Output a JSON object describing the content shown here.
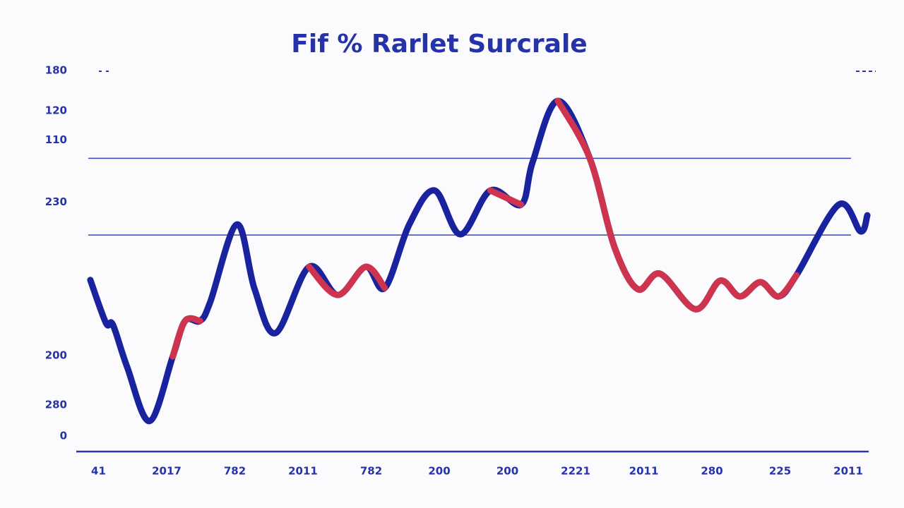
{
  "chart_data": {
    "type": "line",
    "title": "Fif % Rarlet Surcrale",
    "xlim": [
      -0.15,
      11.3
    ],
    "xticks": [
      {
        "value": 0,
        "label": "41"
      },
      {
        "value": 1,
        "label": "2017"
      },
      {
        "value": 2,
        "label": "782"
      },
      {
        "value": 3,
        "label": "2011"
      },
      {
        "value": 4,
        "label": "782"
      },
      {
        "value": 5,
        "label": "200"
      },
      {
        "value": 6,
        "label": "200"
      },
      {
        "value": 7,
        "label": "2221"
      },
      {
        "value": 8,
        "label": "2011"
      },
      {
        "value": 9,
        "label": "280"
      },
      {
        "value": 10,
        "label": "225"
      },
      {
        "value": 11,
        "label": "2011"
      }
    ],
    "ylim": [
      0,
      100
    ],
    "yticks": [
      {
        "value": 100,
        "label": "180"
      },
      {
        "value": 89,
        "label": "120"
      },
      {
        "value": 81,
        "label": "110"
      },
      {
        "value": 64,
        "label": "230"
      },
      {
        "value": 22,
        "label": "200"
      },
      {
        "value": 8.5,
        "label": "280"
      },
      0
    ],
    "hlines": [
      76,
      55
    ],
    "x": [
      -0.12,
      0.11,
      0.21,
      0.42,
      0.75,
      1.09,
      1.27,
      1.49,
      1.64,
      2.03,
      2.29,
      2.6,
      3.09,
      3.51,
      3.92,
      4.2,
      4.56,
      4.93,
      5.31,
      5.75,
      6.2,
      6.37,
      6.74,
      7.21,
      7.57,
      7.91,
      8.24,
      8.76,
      9.12,
      9.41,
      9.71,
      9.98,
      10.24,
      10.86,
      11.18,
      11.28
    ],
    "series": [
      {
        "color": "#1a239e",
        "values": [
          42.7,
          30.9,
          30.5,
          18.9,
          4.1,
          21.8,
          31.5,
          31.5,
          36.7,
          57.9,
          40.2,
          28.2,
          46.3,
          38.6,
          46.3,
          40.5,
          57.9,
          67.2,
          55.2,
          67.2,
          63.3,
          75,
          91.7,
          75.9,
          51.7,
          40.2,
          44.4,
          34.7,
          42.5,
          38.2,
          42.1,
          38.2,
          44.0,
          63.3,
          56.0,
          60.4
        ]
      },
      {
        "color": "#cf344e",
        "values": [
          null,
          null,
          null,
          null,
          null,
          21.8,
          31.5,
          31.5,
          null,
          null,
          null,
          null,
          46.3,
          38.6,
          46.3,
          40.5,
          null,
          null,
          null,
          67.2,
          63.3,
          null,
          91.7,
          75.9,
          51.7,
          40.2,
          44.4,
          34.7,
          42.5,
          38.2,
          42.1,
          38.2,
          44.0,
          null,
          null,
          null
        ]
      }
    ]
  }
}
